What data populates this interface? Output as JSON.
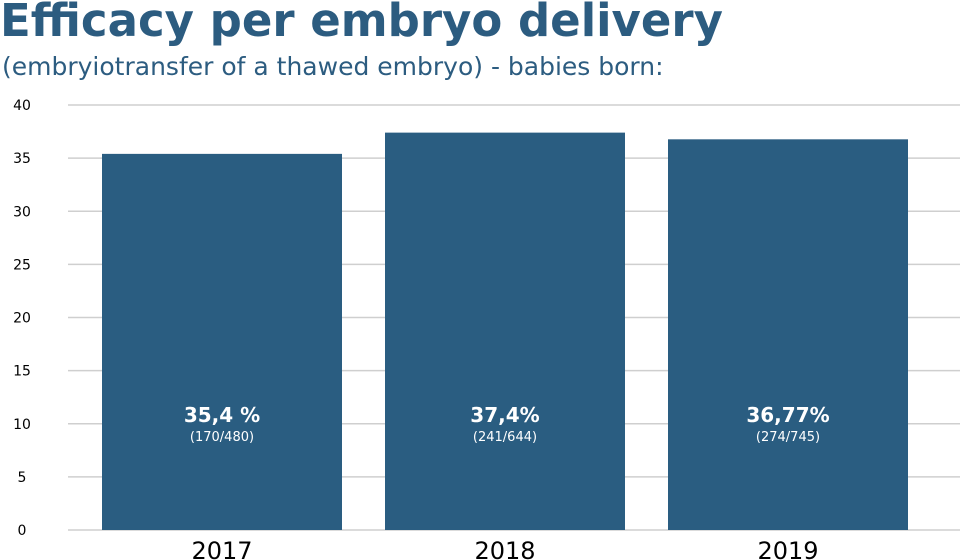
{
  "chart_data": {
    "type": "bar",
    "title": "Efficacy per embryo delivery",
    "subtitle": "(embryiotransfer of a thawed embryo) - babies born:",
    "xlabel": "",
    "ylabel": "",
    "categories": [
      "2017",
      "2018",
      "2019"
    ],
    "values": [
      35.4,
      37.4,
      36.77
    ],
    "data_labels": [
      "35,4 %",
      "37,4%",
      "36,77%"
    ],
    "data_sublabels": [
      "(170/480)",
      "(241/644)",
      "(274/745)"
    ],
    "ylim": [
      0,
      40
    ],
    "yticks": [
      "0",
      "5",
      "10",
      "15",
      "20",
      "25",
      "30",
      "35",
      "40"
    ],
    "grid": true,
    "legend": "none",
    "colors": {
      "bar": "#2a5d81",
      "title": "#2c5c80",
      "grid": "#cfcfcf",
      "bar_label": "#ffffff",
      "tick_label": "#000000"
    }
  }
}
